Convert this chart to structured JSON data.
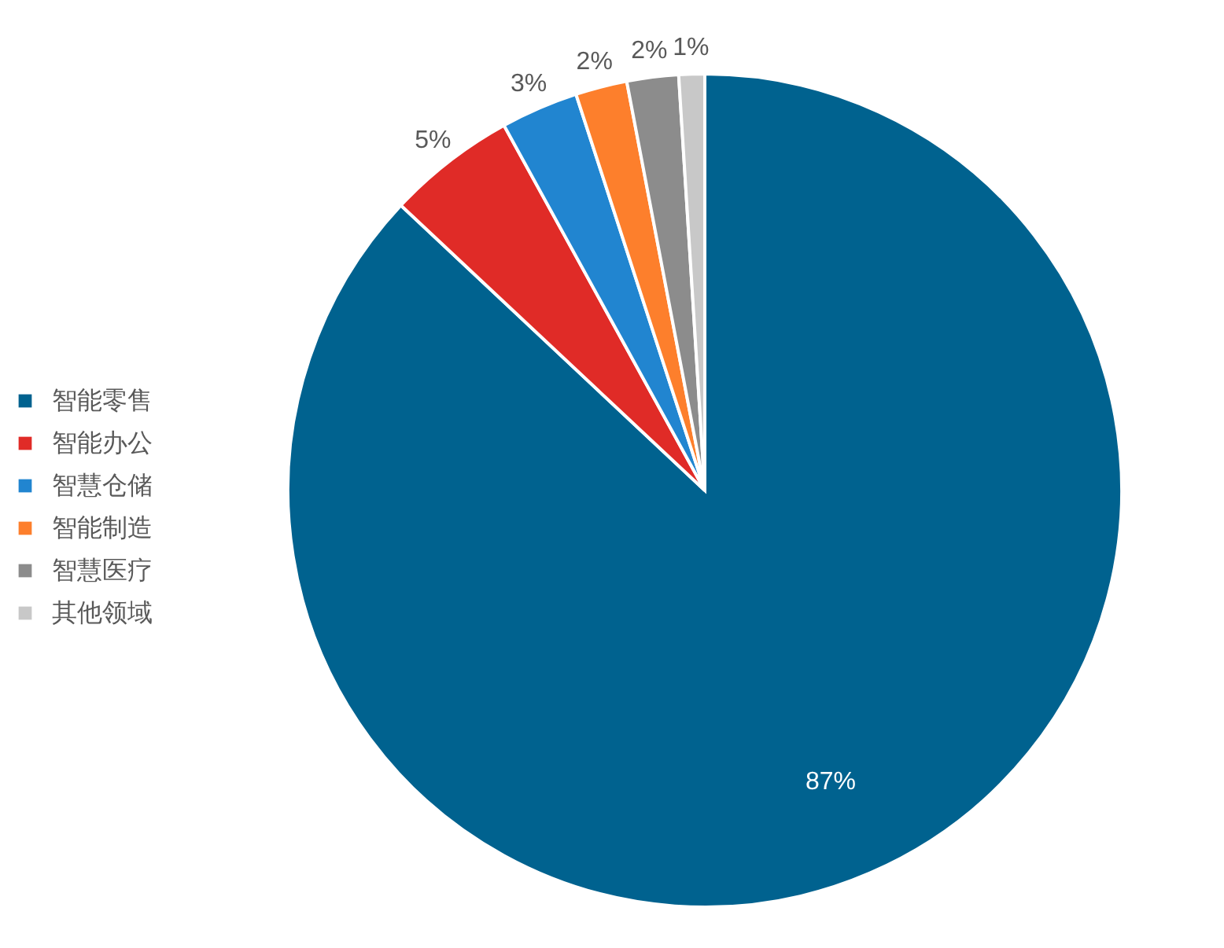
{
  "chart_data": {
    "type": "pie",
    "categories": [
      "智能零售",
      "智能办公",
      "智慧仓储",
      "智能制造",
      "智慧医疗",
      "其他领域"
    ],
    "values": [
      87,
      5,
      3,
      2,
      2,
      1
    ],
    "colors": [
      "#00628f",
      "#e02b27",
      "#2185d0",
      "#fd7f2c",
      "#8c8c8c",
      "#c8c8c8"
    ],
    "value_labels": [
      "87%",
      "5%",
      "3%",
      "2%",
      "2%",
      "1%"
    ],
    "legend": "left"
  }
}
